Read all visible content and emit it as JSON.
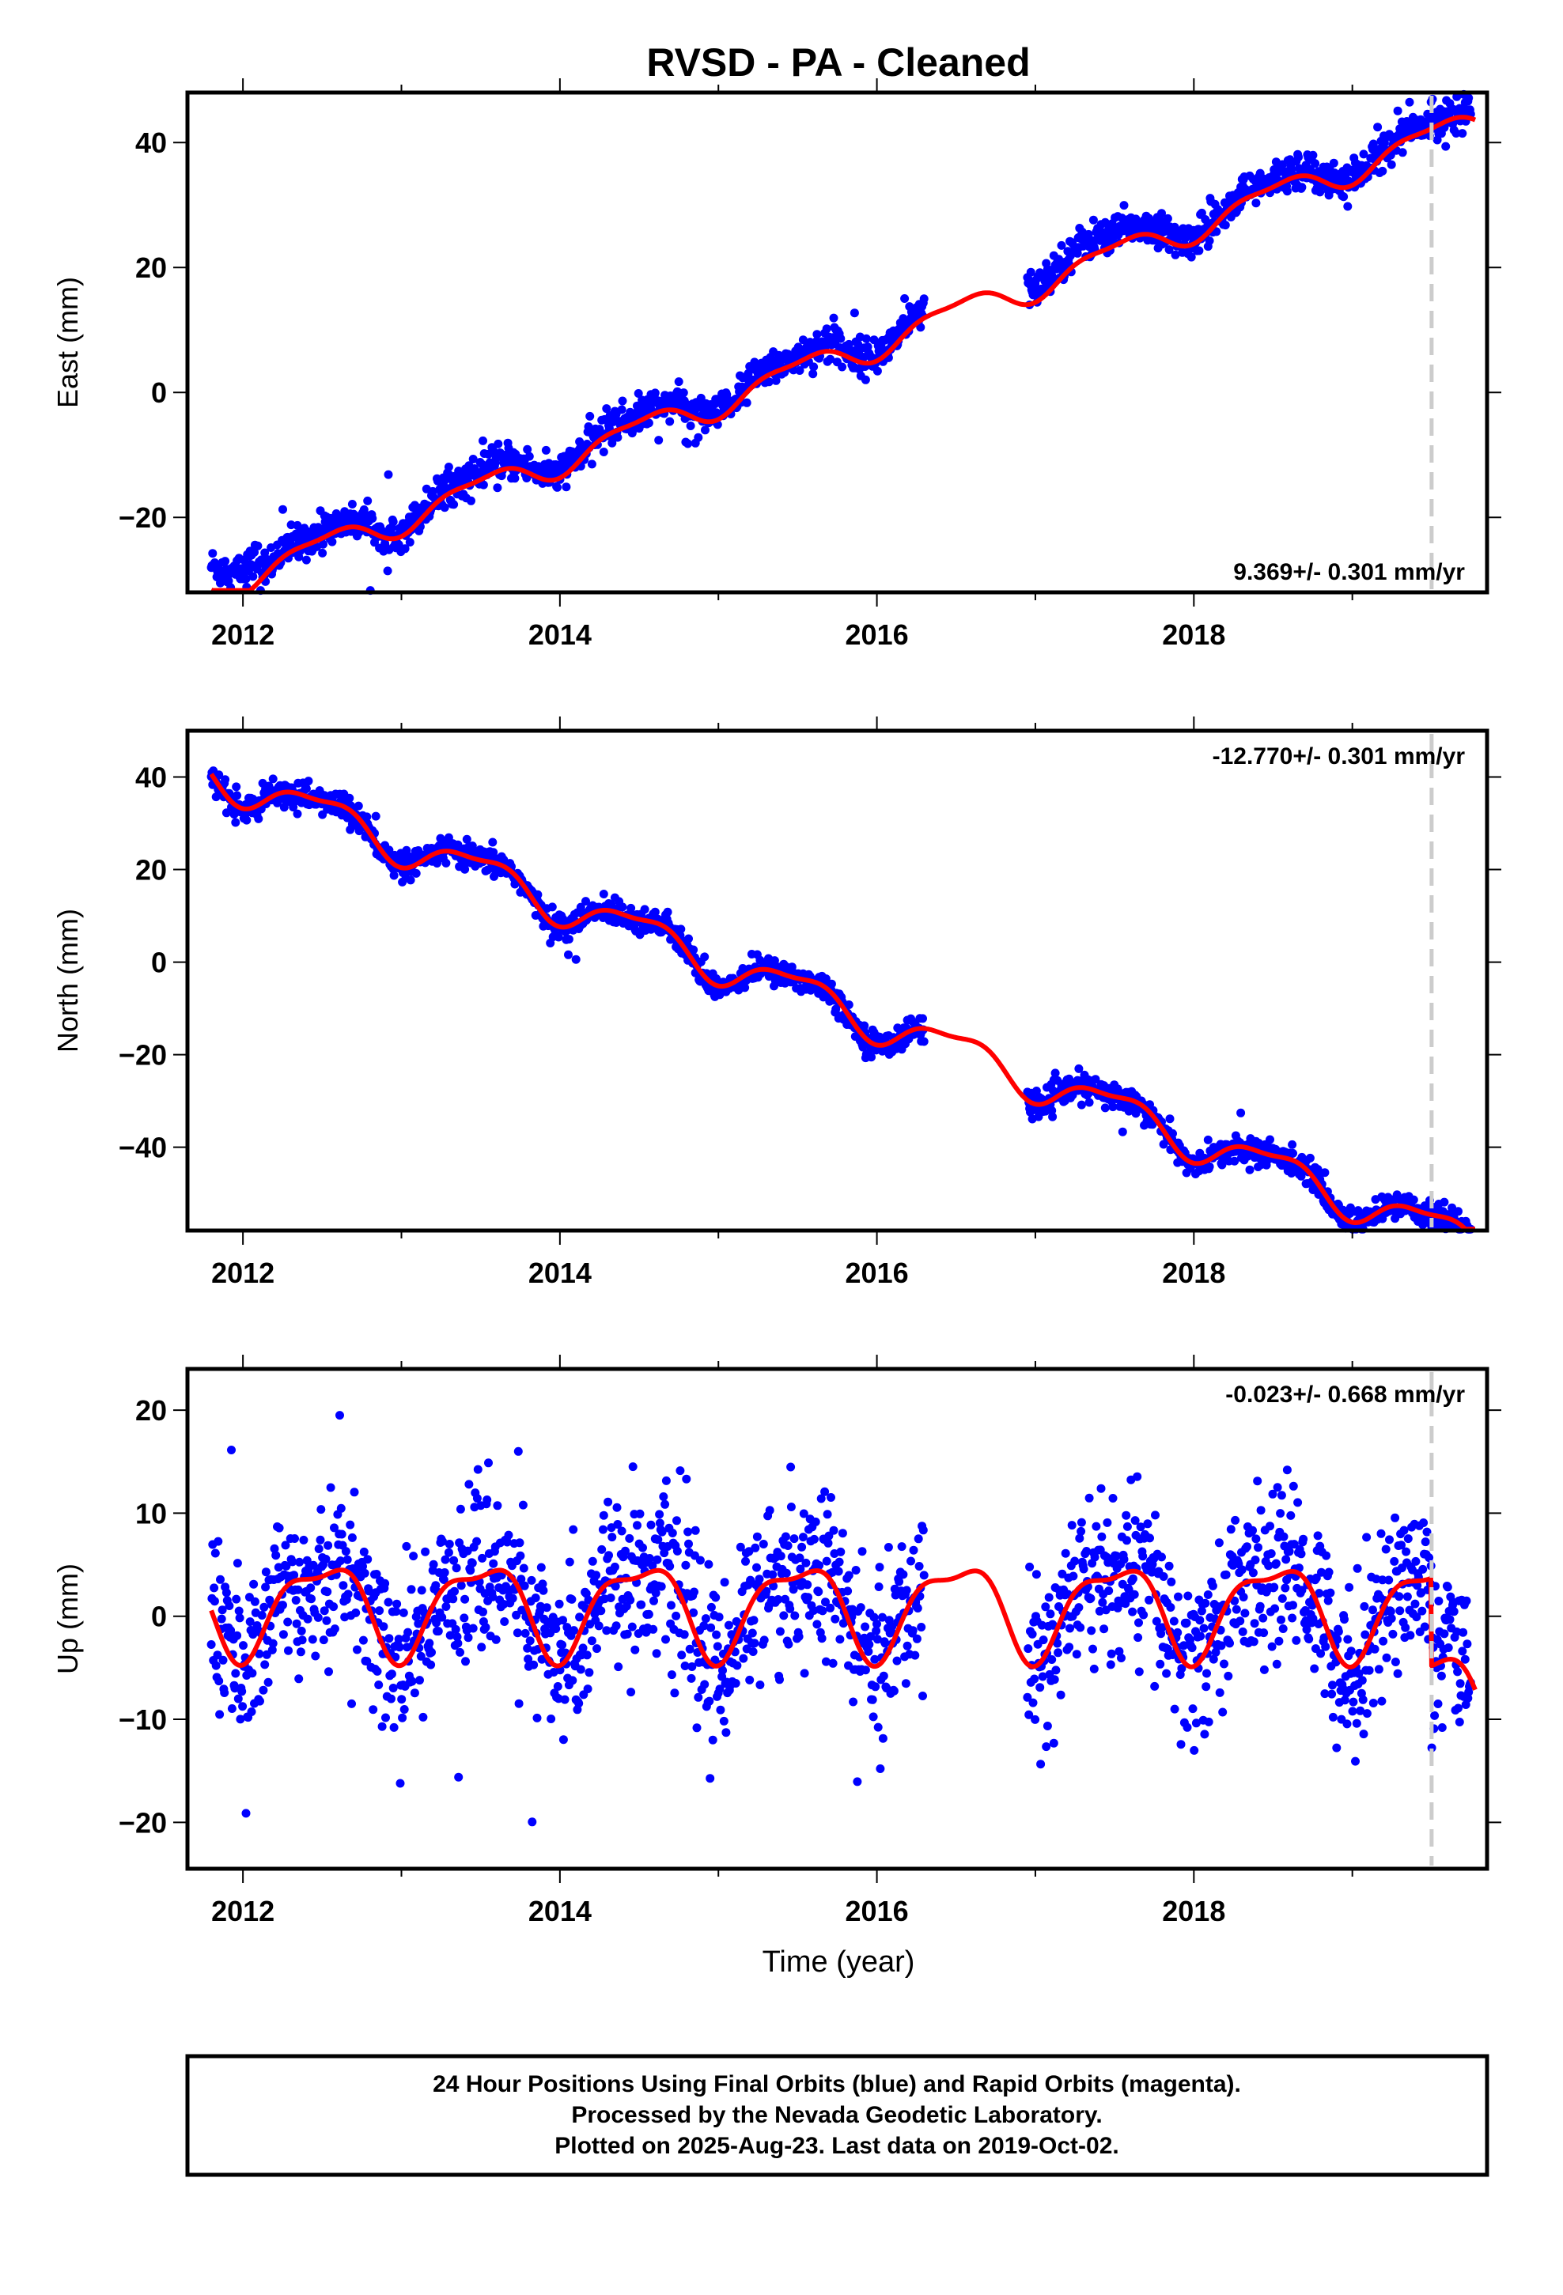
{
  "chart_data": [
    {
      "type": "scatter",
      "title": "RVSD  - PA - Cleaned",
      "ylabel": "East (mm)",
      "xlabel": "",
      "xlim": [
        2011.65,
        2019.85
      ],
      "ylim": [
        -32,
        48
      ],
      "xticks": [
        2012,
        2014,
        2016,
        2018
      ],
      "yticks": [
        -20,
        0,
        20,
        40
      ],
      "grid": false,
      "rate_label": "9.369+/- 0.301 mm/yr",
      "rate_position": "bottom-right",
      "offset_line_x": 2019.5,
      "colors": {
        "data": "#0000ff",
        "model": "#ff0000",
        "offset_line": "#cccccc"
      },
      "series": [
        {
          "kind": "observations",
          "segments": [
            [
              2011.8,
              2016.3
            ],
            [
              2016.95,
              2019.75
            ]
          ],
          "trend": {
            "t0": 2012.0,
            "y0": -28.5,
            "rate_mm_per_yr": 9.369
          },
          "annual_amplitude_mm": 2.2,
          "scatter_mm": 1.4,
          "segment_offsets_mm": [
            [
              2011.8,
              2012.1,
              3.0
            ],
            [
              2016.95,
              2017.6,
              1.5
            ]
          ]
        },
        {
          "kind": "model",
          "trend": {
            "t0": 2012.0,
            "y0": -29.5,
            "rate_mm_per_yr": 9.369
          },
          "annual_amplitude_mm": 2.2
        }
      ]
    },
    {
      "type": "scatter",
      "title": "",
      "ylabel": "North (mm)",
      "xlabel": "",
      "xlim": [
        2011.65,
        2019.85
      ],
      "ylim": [
        -58,
        50
      ],
      "xticks": [
        2012,
        2014,
        2016,
        2018
      ],
      "yticks": [
        -40,
        -20,
        0,
        20,
        40
      ],
      "grid": false,
      "rate_label": "-12.770+/- 0.301 mm/yr",
      "rate_position": "top-right",
      "offset_line_x": 2019.5,
      "colors": {
        "data": "#0000ff",
        "model": "#ff0000",
        "offset_line": "#cccccc"
      },
      "series": [
        {
          "kind": "observations",
          "segments": [
            [
              2011.8,
              2016.3
            ],
            [
              2016.95,
              2019.75
            ]
          ],
          "trend": {
            "t0": 2012.0,
            "y0": 38.5,
            "rate_mm_per_yr": -12.77
          },
          "annual_amplitude_mm": 4.0,
          "scatter_mm": 1.4
        },
        {
          "kind": "model",
          "trend": {
            "t0": 2012.0,
            "y0": 38.5,
            "rate_mm_per_yr": -12.77
          },
          "annual_amplitude_mm": 4.0
        }
      ]
    },
    {
      "type": "scatter",
      "title": "",
      "ylabel": "Up (mm)",
      "xlabel": "Time (year)",
      "xlim": [
        2011.65,
        2019.85
      ],
      "ylim": [
        -24.5,
        24
      ],
      "xticks": [
        2012,
        2014,
        2016,
        2018
      ],
      "yticks": [
        -20,
        -10,
        0,
        10,
        20
      ],
      "grid": false,
      "rate_label": "-0.023+/- 0.668 mm/yr",
      "rate_position": "top-right",
      "offset_line_x": 2019.5,
      "colors": {
        "data": "#0000ff",
        "model": "#ff0000",
        "offset_line": "#cccccc"
      },
      "series": [
        {
          "kind": "observations",
          "segments": [
            [
              2011.8,
              2016.3
            ],
            [
              2016.95,
              2019.75
            ]
          ],
          "trend": {
            "t0": 2012.0,
            "y0": 1.0,
            "rate_mm_per_yr": -0.023
          },
          "annual_amplitude_mm": 4.3,
          "scatter_mm": 4.0,
          "step_after_offset_mm": -8.0
        },
        {
          "kind": "model",
          "trend": {
            "t0": 2012.0,
            "y0": 1.0,
            "rate_mm_per_yr": -0.023
          },
          "annual_amplitude_mm": 4.3,
          "step_after_offset_mm": -8.5
        }
      ]
    }
  ],
  "footer": {
    "line1": "24 Hour Positions Using Final Orbits (blue) and Rapid Orbits (magenta).",
    "line2": "Processed by the Nevada Geodetic Laboratory.",
    "line3": "Plotted on 2025-Aug-23. Last data on 2019-Oct-02."
  }
}
